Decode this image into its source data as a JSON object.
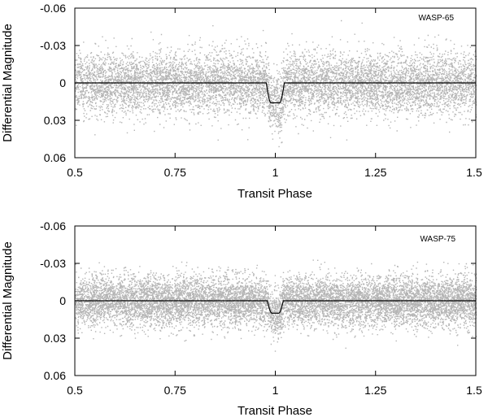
{
  "chart_data": [
    {
      "type": "scatter",
      "title": "",
      "annotation": "WASP-65",
      "xlabel": "Transit Phase",
      "ylabel": "Differential Magnitude",
      "xlim": [
        0.5,
        1.5
      ],
      "ylim": [
        -0.06,
        0.06
      ],
      "y_inverted": true,
      "grid": false,
      "x_ticks": [
        "0.5",
        "0.75",
        "1",
        "1.25",
        "1.5"
      ],
      "y_ticks": [
        "-0.06",
        "-0.03",
        "0",
        "0.03",
        "0.06"
      ],
      "point_color": "#b4b4b4",
      "model_color": "#000000",
      "series": [
        {
          "kind": "observations",
          "scatter_sd": 0.012,
          "n_points": 9000
        },
        {
          "kind": "transit-model",
          "baseline": 0,
          "transit_center": 1.0,
          "transit_depth": 0.016,
          "transit_duration": 0.045,
          "ingress_duration": 0.012
        }
      ]
    },
    {
      "type": "scatter",
      "title": "",
      "annotation": "WASP-75",
      "xlabel": "Transit Phase",
      "ylabel": "Differential Magnitude",
      "xlim": [
        0.5,
        1.5
      ],
      "ylim": [
        -0.06,
        0.06
      ],
      "y_inverted": true,
      "grid": false,
      "x_ticks": [
        "0.5",
        "0.75",
        "1",
        "1.25",
        "1.5"
      ],
      "y_ticks": [
        "-0.06",
        "-0.03",
        "0",
        "0.03",
        "0.06"
      ],
      "point_color": "#b4b4b4",
      "model_color": "#000000",
      "series": [
        {
          "kind": "observations",
          "scatter_sd": 0.01,
          "n_points": 11000
        },
        {
          "kind": "transit-model",
          "baseline": 0,
          "transit_center": 1.0,
          "transit_depth": 0.01,
          "transit_duration": 0.04,
          "ingress_duration": 0.012
        }
      ]
    }
  ]
}
